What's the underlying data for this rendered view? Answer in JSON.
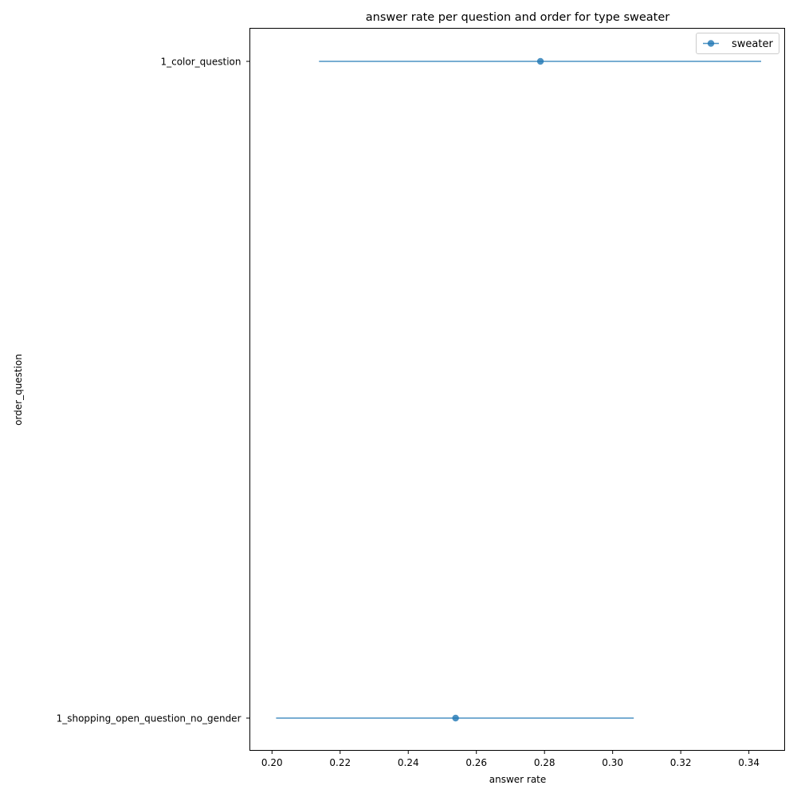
{
  "chart_data": {
    "type": "errorbar",
    "title": "answer rate per question and order for type sweater",
    "xlabel": "answer rate",
    "ylabel": "order_question",
    "xlim": [
      0.1935,
      0.3505
    ],
    "x_ticks": [
      0.2,
      0.22,
      0.24,
      0.26,
      0.28,
      0.3,
      0.32,
      0.34
    ],
    "x_tick_labels": [
      "0.20",
      "0.22",
      "0.24",
      "0.26",
      "0.28",
      "0.30",
      "0.32",
      "0.34"
    ],
    "categories": [
      "1_color_question",
      "1_shopping_open_question_no_gender"
    ],
    "legend_position": "top-right",
    "grid": false,
    "series": [
      {
        "name": "sweater",
        "color": "#1f77b4",
        "points": [
          {
            "category": "1_color_question",
            "value": 0.2788,
            "lower": 0.2138,
            "upper": 0.3436
          },
          {
            "category": "1_shopping_open_question_no_gender",
            "value": 0.2539,
            "lower": 0.2012,
            "upper": 0.3062
          }
        ]
      }
    ]
  }
}
